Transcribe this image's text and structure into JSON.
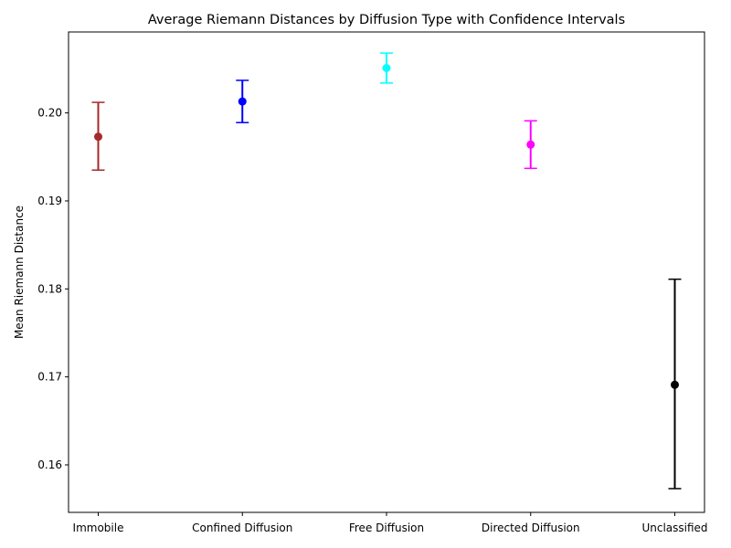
{
  "chart_data": {
    "type": "errorbar",
    "title": "Average Riemann Distances by Diffusion Type with Confidence Intervals",
    "xlabel": "",
    "ylabel": "Mean Riemann Distance",
    "ylim": [
      0.1546,
      0.2092
    ],
    "yticks": [
      "0.16",
      "0.17",
      "0.18",
      "0.19",
      "0.20"
    ],
    "grid": false,
    "categories": [
      "Immobile",
      "Confined Diffusion",
      "Free Diffusion",
      "Directed Diffusion",
      "Unclassified"
    ],
    "series": [
      {
        "means": [
          0.1973,
          0.2013,
          0.2051,
          0.1964,
          0.1691
        ],
        "ci_lower": [
          0.1935,
          0.1989,
          0.2034,
          0.1937,
          0.1573
        ],
        "ci_upper": [
          0.2012,
          0.2037,
          0.2068,
          0.1991,
          0.1811
        ],
        "colors": [
          "#a52a2a",
          "#0000ff",
          "#00ffff",
          "#ff00ff",
          "#000000"
        ]
      }
    ]
  }
}
